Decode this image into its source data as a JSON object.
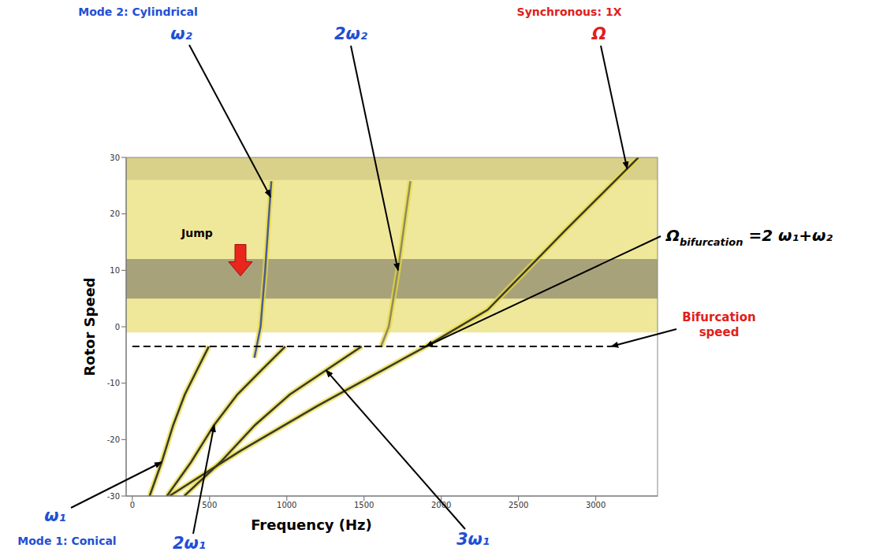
{
  "chart_data": {
    "type": "line",
    "x_label": "Frequency (Hz)",
    "y_label": "Rotor Speed",
    "xlim": [
      -40,
      3400
    ],
    "xticks": [
      0,
      500,
      1000,
      1500,
      2000,
      2500,
      3000
    ],
    "ylim": [
      -30,
      30
    ],
    "yticks": [
      -30,
      -20,
      -10,
      0,
      10,
      20,
      30
    ],
    "grid": false,
    "series": [
      {
        "name": "ω₁",
        "caption": "Mode 1: Conical",
        "color": "#3b3a2c",
        "label_color": "#1f4fd6",
        "x": [
          112,
          190,
          265,
          340,
          418,
          495
        ],
        "values": [
          -30,
          -24,
          -17.4,
          -12,
          -7.7,
          -3.5
        ],
        "target": [
          190,
          -24
        ]
      },
      {
        "name": "2ω₁",
        "color": "#3b3a2c",
        "label_color": "#1f4fd6",
        "x": [
          224,
          380,
          530,
          680,
          836,
          990
        ],
        "values": [
          -30,
          -24,
          -17.4,
          -12,
          -7.7,
          -3.5
        ],
        "target": [
          530,
          -17.4
        ]
      },
      {
        "name": "3ω₁",
        "color": "#3b3a2c",
        "label_color": "#1f4fd6",
        "x": [
          336,
          570,
          795,
          1020,
          1254,
          1485
        ],
        "values": [
          -30,
          -24,
          -17.4,
          -12,
          -7.7,
          -3.5
        ],
        "target": [
          1254,
          -7.7
        ]
      },
      {
        "name": "ω₂",
        "caption": "Mode 2: Cylindrical",
        "color": "#4a5a9a",
        "label_color": "#1f4fd6",
        "x": [
          790,
          805,
          830,
          860,
          885,
          900
        ],
        "values": [
          -5.5,
          -3.5,
          0,
          10,
          20,
          25.8
        ],
        "target": [
          895,
          23
        ]
      },
      {
        "name": "2ω₂",
        "color": "#8f8a66",
        "label_color": "#1f4fd6",
        "x": [
          1610,
          1660,
          1720,
          1770,
          1800
        ],
        "values": [
          -3.5,
          0,
          10,
          20,
          25.8
        ],
        "target": [
          1720,
          10
        ]
      },
      {
        "name": "Ω",
        "caption": "Synchronous: 1X",
        "color": "#3b3a2c",
        "label_color": "#e0201b",
        "x": [
          240,
          700,
          1200,
          1600,
          1900,
          2300,
          2800,
          3276
        ],
        "values": [
          -30,
          -22,
          -14,
          -8,
          -3.5,
          3,
          17,
          30
        ],
        "target": [
          3203,
          28
        ]
      }
    ],
    "bands": [
      {
        "from": -1,
        "to": 30,
        "color": "#efe89a"
      },
      {
        "from": 26,
        "to": 30,
        "color": "#d9d08a"
      },
      {
        "from": 5,
        "to": 12,
        "color": "#a8a27a"
      }
    ],
    "bifurcation_line": {
      "y": -3.5,
      "x": [
        0,
        3100
      ],
      "color": "#000000"
    },
    "annotations": [
      {
        "text": "Jump",
        "color": "#000000",
        "arrow_color": "#e8261c",
        "target": [
          700,
          9
        ]
      },
      {
        "text": "Ω",
        "subscript": "bifurcation",
        "text_after": " =2 ω₁+ω₂",
        "color": "#000000",
        "target": [
          1900,
          -3.5
        ]
      },
      {
        "text": "Bifurcation speed",
        "color": "#e0201b",
        "target": [
          3100,
          -3.5
        ]
      }
    ]
  }
}
